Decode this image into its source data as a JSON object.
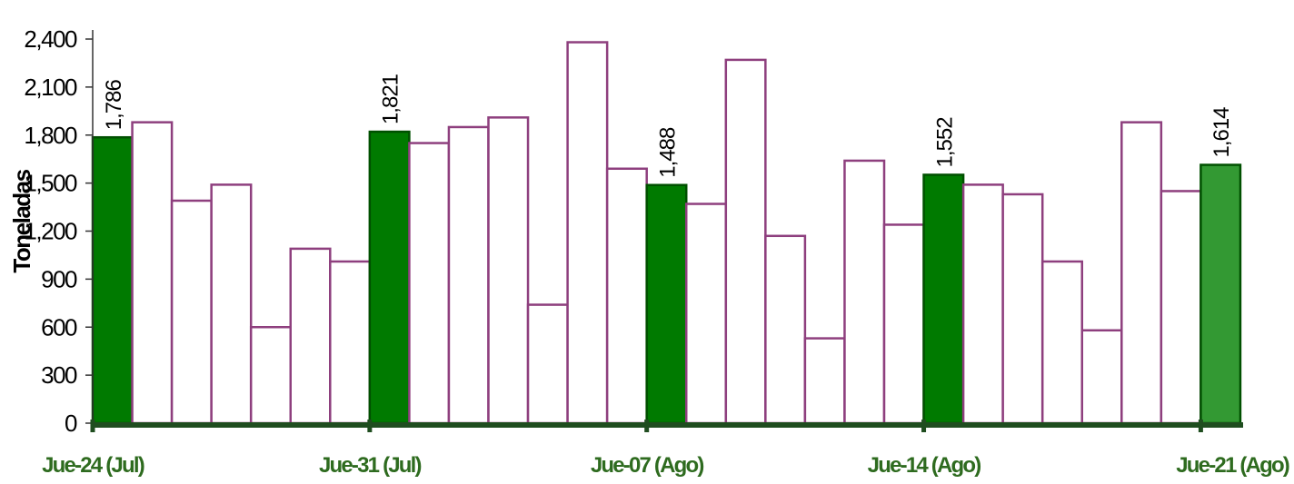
{
  "chart_data": {
    "type": "bar",
    "title": "",
    "ylabel": "Toneladas",
    "ylim": [
      0,
      2400
    ],
    "yticks": [
      0,
      300,
      600,
      900,
      1200,
      1500,
      1800,
      2100,
      2400
    ],
    "ytick_labels": [
      "0",
      "300",
      "600",
      "900",
      "1,200",
      "1,500",
      "1,800",
      "2,100",
      "2,400"
    ],
    "x_tick_labels": [
      "Jue-24 (Jul)",
      "Jue-31 (Jul)",
      "Jue-07 (Ago)",
      "Jue-14 (Ago)",
      "Jue-21 (Ago)"
    ],
    "x_tick_bar_index": [
      0,
      7,
      14,
      21,
      28
    ],
    "values": [
      1786,
      1880,
      1390,
      1490,
      600,
      1090,
      1010,
      1821,
      1750,
      1850,
      1910,
      740,
      2380,
      1590,
      1488,
      1370,
      2270,
      1170,
      530,
      1640,
      1240,
      1552,
      1490,
      1430,
      1010,
      580,
      1880,
      1450,
      1614
    ],
    "highlighted": [
      0,
      7,
      14,
      21,
      28
    ],
    "latest_index": 28,
    "data_labels": [
      {
        "index": 0,
        "text": "1,786"
      },
      {
        "index": 7,
        "text": "1,821"
      },
      {
        "index": 14,
        "text": "1,488"
      },
      {
        "index": 21,
        "text": "1,552"
      },
      {
        "index": 28,
        "text": "1,614"
      }
    ],
    "grid": false,
    "legend": "none",
    "colors": {
      "bar_fill": "#ffffff",
      "bar_edge": "#8e3f7e",
      "highlight_fill": "#007a00",
      "highlight_edge": "#005000",
      "latest_fill": "#339933",
      "axis": "#1f4d1f",
      "xtick_text": "#2e6b1f"
    }
  }
}
